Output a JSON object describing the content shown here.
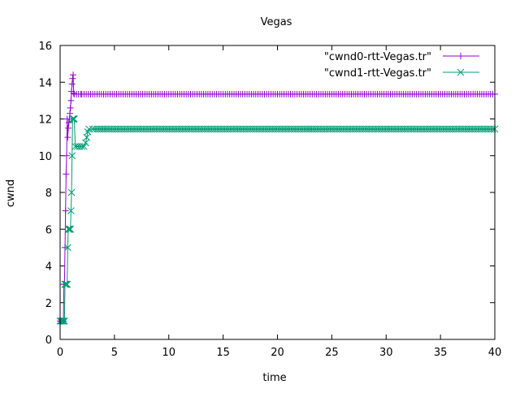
{
  "chart_data": {
    "type": "line",
    "title": "Vegas",
    "xlabel": "time",
    "ylabel": "cwnd",
    "xlim": [
      0,
      40
    ],
    "ylim": [
      0,
      16
    ],
    "xticks": [
      0,
      5,
      10,
      15,
      20,
      25,
      30,
      35,
      40
    ],
    "yticks": [
      0,
      2,
      4,
      6,
      8,
      10,
      12,
      14,
      16
    ],
    "legend_position": "top-right",
    "series": [
      {
        "name": "\"cwnd0-rtt-Vegas.tr\"",
        "color": "#9400d3",
        "marker": "plus",
        "points": [
          [
            0.0,
            1
          ],
          [
            0.1,
            1
          ],
          [
            0.2,
            1
          ],
          [
            0.3,
            1
          ],
          [
            0.35,
            3
          ],
          [
            0.4,
            3
          ],
          [
            0.45,
            5
          ],
          [
            0.5,
            7
          ],
          [
            0.55,
            9
          ],
          [
            0.6,
            10
          ],
          [
            0.65,
            12
          ],
          [
            0.7,
            11
          ],
          [
            0.75,
            11.5
          ],
          [
            0.8,
            11.8
          ],
          [
            0.85,
            12
          ],
          [
            0.9,
            12.3
          ],
          [
            0.95,
            12.6
          ],
          [
            1.0,
            13
          ],
          [
            1.05,
            13.5
          ],
          [
            1.1,
            13.9
          ],
          [
            1.15,
            14.2
          ],
          [
            1.2,
            14.4
          ],
          [
            1.25,
            13.4
          ],
          [
            1.3,
            13.35
          ],
          [
            2,
            13.35
          ],
          [
            3,
            13.35
          ],
          [
            4,
            13.35
          ],
          [
            5,
            13.35
          ],
          [
            6,
            13.35
          ],
          [
            7,
            13.35
          ],
          [
            8,
            13.35
          ],
          [
            9,
            13.35
          ],
          [
            10,
            13.35
          ],
          [
            11,
            13.35
          ],
          [
            12,
            13.35
          ],
          [
            13,
            13.35
          ],
          [
            14,
            13.35
          ],
          [
            15,
            13.35
          ],
          [
            16,
            13.35
          ],
          [
            17,
            13.35
          ],
          [
            18,
            13.35
          ],
          [
            19,
            13.35
          ],
          [
            20,
            13.35
          ],
          [
            21,
            13.35
          ],
          [
            22,
            13.35
          ],
          [
            23,
            13.35
          ],
          [
            24,
            13.35
          ],
          [
            25,
            13.35
          ],
          [
            26,
            13.35
          ],
          [
            27,
            13.35
          ],
          [
            28,
            13.35
          ],
          [
            29,
            13.35
          ],
          [
            30,
            13.35
          ],
          [
            31,
            13.35
          ],
          [
            32,
            13.35
          ],
          [
            33,
            13.35
          ],
          [
            34,
            13.35
          ],
          [
            35,
            13.35
          ],
          [
            36,
            13.35
          ],
          [
            37,
            13.35
          ],
          [
            38,
            13.35
          ],
          [
            39,
            13.35
          ],
          [
            40,
            13.35
          ]
        ]
      },
      {
        "name": "\"cwnd1-rtt-Vegas.tr\"",
        "color": "#009e73",
        "marker": "cross",
        "points": [
          [
            0.0,
            1
          ],
          [
            0.1,
            1
          ],
          [
            0.2,
            1
          ],
          [
            0.3,
            1
          ],
          [
            0.4,
            1
          ],
          [
            0.45,
            3
          ],
          [
            0.5,
            3
          ],
          [
            0.55,
            3
          ],
          [
            0.6,
            3
          ],
          [
            0.65,
            3
          ],
          [
            0.7,
            5
          ],
          [
            0.75,
            6
          ],
          [
            0.8,
            6
          ],
          [
            0.85,
            6
          ],
          [
            0.9,
            6
          ],
          [
            0.95,
            6
          ],
          [
            1.0,
            7
          ],
          [
            1.05,
            8
          ],
          [
            1.1,
            10
          ],
          [
            1.15,
            12
          ],
          [
            1.2,
            12
          ],
          [
            1.25,
            12
          ],
          [
            1.3,
            12
          ],
          [
            1.4,
            10.5
          ],
          [
            1.6,
            10.5
          ],
          [
            1.8,
            10.5
          ],
          [
            2.0,
            10.5
          ],
          [
            2.2,
            10.5
          ],
          [
            2.35,
            10.7
          ],
          [
            2.45,
            11.0
          ],
          [
            2.55,
            11.3
          ],
          [
            2.65,
            11.45
          ],
          [
            3,
            11.45
          ],
          [
            4,
            11.45
          ],
          [
            5,
            11.45
          ],
          [
            6,
            11.45
          ],
          [
            7,
            11.45
          ],
          [
            8,
            11.45
          ],
          [
            9,
            11.45
          ],
          [
            10,
            11.45
          ],
          [
            11,
            11.45
          ],
          [
            12,
            11.45
          ],
          [
            13,
            11.45
          ],
          [
            14,
            11.45
          ],
          [
            15,
            11.45
          ],
          [
            16,
            11.45
          ],
          [
            17,
            11.45
          ],
          [
            18,
            11.45
          ],
          [
            19,
            11.45
          ],
          [
            20,
            11.45
          ],
          [
            21,
            11.45
          ],
          [
            22,
            11.45
          ],
          [
            23,
            11.45
          ],
          [
            24,
            11.45
          ],
          [
            25,
            11.45
          ],
          [
            26,
            11.45
          ],
          [
            27,
            11.45
          ],
          [
            28,
            11.45
          ],
          [
            29,
            11.45
          ],
          [
            30,
            11.45
          ],
          [
            31,
            11.45
          ],
          [
            32,
            11.45
          ],
          [
            33,
            11.45
          ],
          [
            34,
            11.45
          ],
          [
            35,
            11.45
          ],
          [
            36,
            11.45
          ],
          [
            37,
            11.45
          ],
          [
            38,
            11.45
          ],
          [
            39,
            11.45
          ],
          [
            40,
            11.45
          ]
        ]
      }
    ]
  }
}
